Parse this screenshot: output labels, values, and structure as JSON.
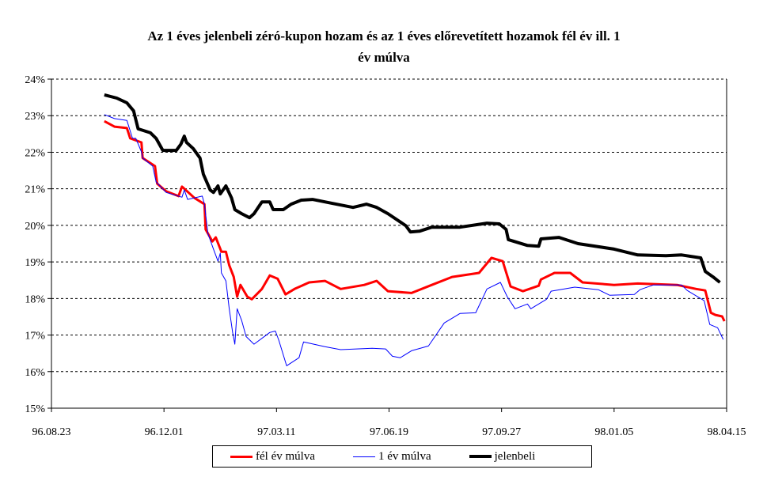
{
  "chart_data": {
    "type": "line",
    "title": "Az 1 éves jelenbeli zéró-kupon hozam és az 1 éves előrevetített hozamok fél év ill. 1 év múlva",
    "title_lines": [
      "Az 1 éves jelenbeli zéró-kupon hozam és az 1 éves előrevetített hozamok fél év ill. 1",
      "év múlva"
    ],
    "xlabel": "",
    "ylabel": "",
    "x_unit": "days since 96.08.23",
    "xlim": [
      0,
      600
    ],
    "ylim": [
      15,
      24
    ],
    "x_ticks": [
      0,
      100,
      200,
      300,
      400,
      500,
      600
    ],
    "x_tick_labels": [
      "96.08.23",
      "96.12.01",
      "97.03.11",
      "97.06.19",
      "97.09.27",
      "98.01.05",
      "98.04.15"
    ],
    "y_ticks": [
      15,
      16,
      17,
      18,
      19,
      20,
      21,
      22,
      23,
      24
    ],
    "y_tick_labels": [
      "15%",
      "16%",
      "17%",
      "18%",
      "19%",
      "20%",
      "21%",
      "22%",
      "23%",
      "24%"
    ],
    "grid": "horizontal dashed",
    "legend_position": "bottom",
    "series": [
      {
        "name": "fél év múlva",
        "color": "#ff0000",
        "width": "medium",
        "points": [
          [
            47,
            22.85
          ],
          [
            56,
            22.7
          ],
          [
            67,
            22.66
          ],
          [
            70,
            22.38
          ],
          [
            80,
            22.27
          ],
          [
            81,
            21.84
          ],
          [
            92,
            21.62
          ],
          [
            94,
            21.14
          ],
          [
            102,
            20.93
          ],
          [
            113,
            20.8
          ],
          [
            116,
            21.06
          ],
          [
            127,
            20.75
          ],
          [
            136,
            20.58
          ],
          [
            137,
            19.89
          ],
          [
            143,
            19.56
          ],
          [
            146,
            19.67
          ],
          [
            151,
            19.28
          ],
          [
            155,
            19.28
          ],
          [
            158,
            18.91
          ],
          [
            162,
            18.59
          ],
          [
            165,
            18.05
          ],
          [
            168,
            18.37
          ],
          [
            174,
            18.05
          ],
          [
            178,
            17.98
          ],
          [
            187,
            18.26
          ],
          [
            194,
            18.63
          ],
          [
            201,
            18.54
          ],
          [
            208,
            18.11
          ],
          [
            216,
            18.26
          ],
          [
            229,
            18.44
          ],
          [
            243,
            18.48
          ],
          [
            257,
            18.26
          ],
          [
            278,
            18.37
          ],
          [
            289,
            18.48
          ],
          [
            299,
            18.2
          ],
          [
            320,
            18.15
          ],
          [
            338,
            18.37
          ],
          [
            356,
            18.59
          ],
          [
            380,
            18.7
          ],
          [
            391,
            19.11
          ],
          [
            401,
            19.02
          ],
          [
            408,
            18.33
          ],
          [
            419,
            18.2
          ],
          [
            433,
            18.35
          ],
          [
            435,
            18.52
          ],
          [
            447,
            18.7
          ],
          [
            461,
            18.7
          ],
          [
            472,
            18.44
          ],
          [
            500,
            18.37
          ],
          [
            521,
            18.41
          ],
          [
            556,
            18.37
          ],
          [
            573,
            18.26
          ],
          [
            581,
            18.22
          ],
          [
            586,
            17.61
          ],
          [
            590,
            17.55
          ],
          [
            596,
            17.51
          ],
          [
            598,
            17.38
          ]
        ]
      },
      {
        "name": "1 év múlva",
        "color": "#0000ff",
        "width": "thin",
        "points": [
          [
            47,
            23.03
          ],
          [
            56,
            22.92
          ],
          [
            67,
            22.87
          ],
          [
            72,
            22.38
          ],
          [
            75,
            22.38
          ],
          [
            80,
            22.01
          ],
          [
            81,
            21.84
          ],
          [
            90,
            21.62
          ],
          [
            93,
            21.19
          ],
          [
            102,
            20.9
          ],
          [
            116,
            20.77
          ],
          [
            118,
            20.97
          ],
          [
            121,
            20.71
          ],
          [
            134,
            20.8
          ],
          [
            136,
            20.58
          ],
          [
            139,
            19.78
          ],
          [
            144,
            19.35
          ],
          [
            148,
            19.02
          ],
          [
            150,
            19.24
          ],
          [
            151,
            18.7
          ],
          [
            155,
            18.48
          ],
          [
            158,
            17.72
          ],
          [
            161,
            17.07
          ],
          [
            163,
            16.75
          ],
          [
            165,
            17.72
          ],
          [
            169,
            17.4
          ],
          [
            173,
            16.96
          ],
          [
            180,
            16.75
          ],
          [
            194,
            17.07
          ],
          [
            199,
            17.11
          ],
          [
            202,
            16.86
          ],
          [
            209,
            16.16
          ],
          [
            220,
            16.38
          ],
          [
            224,
            16.81
          ],
          [
            243,
            16.68
          ],
          [
            257,
            16.6
          ],
          [
            285,
            16.64
          ],
          [
            297,
            16.62
          ],
          [
            303,
            16.42
          ],
          [
            310,
            16.38
          ],
          [
            320,
            16.57
          ],
          [
            335,
            16.7
          ],
          [
            349,
            17.33
          ],
          [
            363,
            17.59
          ],
          [
            377,
            17.61
          ],
          [
            387,
            18.26
          ],
          [
            399,
            18.44
          ],
          [
            405,
            18.05
          ],
          [
            412,
            17.72
          ],
          [
            423,
            17.85
          ],
          [
            426,
            17.72
          ],
          [
            440,
            17.98
          ],
          [
            444,
            18.2
          ],
          [
            465,
            18.31
          ],
          [
            486,
            18.24
          ],
          [
            496,
            18.09
          ],
          [
            518,
            18.11
          ],
          [
            523,
            18.24
          ],
          [
            535,
            18.37
          ],
          [
            560,
            18.37
          ],
          [
            565,
            18.22
          ],
          [
            580,
            17.94
          ],
          [
            585,
            17.29
          ],
          [
            592,
            17.2
          ],
          [
            597,
            16.88
          ]
        ]
      },
      {
        "name": "jelenbeli",
        "color": "#000000",
        "width": "thick",
        "points": [
          [
            47,
            23.57
          ],
          [
            58,
            23.48
          ],
          [
            67,
            23.35
          ],
          [
            73,
            23.13
          ],
          [
            77,
            22.64
          ],
          [
            88,
            22.53
          ],
          [
            93,
            22.38
          ],
          [
            99,
            22.05
          ],
          [
            111,
            22.05
          ],
          [
            115,
            22.22
          ],
          [
            118,
            22.44
          ],
          [
            120,
            22.27
          ],
          [
            126,
            22.1
          ],
          [
            132,
            21.84
          ],
          [
            135,
            21.4
          ],
          [
            141,
            20.97
          ],
          [
            144,
            20.9
          ],
          [
            148,
            21.08
          ],
          [
            150,
            20.86
          ],
          [
            155,
            21.08
          ],
          [
            160,
            20.75
          ],
          [
            163,
            20.43
          ],
          [
            169,
            20.32
          ],
          [
            176,
            20.21
          ],
          [
            180,
            20.32
          ],
          [
            187,
            20.64
          ],
          [
            194,
            20.64
          ],
          [
            197,
            20.43
          ],
          [
            206,
            20.43
          ],
          [
            213,
            20.58
          ],
          [
            222,
            20.69
          ],
          [
            232,
            20.71
          ],
          [
            250,
            20.6
          ],
          [
            268,
            20.49
          ],
          [
            280,
            20.58
          ],
          [
            289,
            20.49
          ],
          [
            299,
            20.32
          ],
          [
            315,
            19.99
          ],
          [
            319,
            19.82
          ],
          [
            327,
            19.84
          ],
          [
            338,
            19.95
          ],
          [
            363,
            19.95
          ],
          [
            387,
            20.06
          ],
          [
            398,
            20.04
          ],
          [
            404,
            19.89
          ],
          [
            406,
            19.61
          ],
          [
            423,
            19.45
          ],
          [
            433,
            19.43
          ],
          [
            435,
            19.63
          ],
          [
            451,
            19.67
          ],
          [
            468,
            19.5
          ],
          [
            500,
            19.35
          ],
          [
            521,
            19.19
          ],
          [
            546,
            19.17
          ],
          [
            560,
            19.19
          ],
          [
            577,
            19.11
          ],
          [
            581,
            18.74
          ],
          [
            588,
            18.59
          ],
          [
            594,
            18.44
          ]
        ]
      }
    ]
  }
}
